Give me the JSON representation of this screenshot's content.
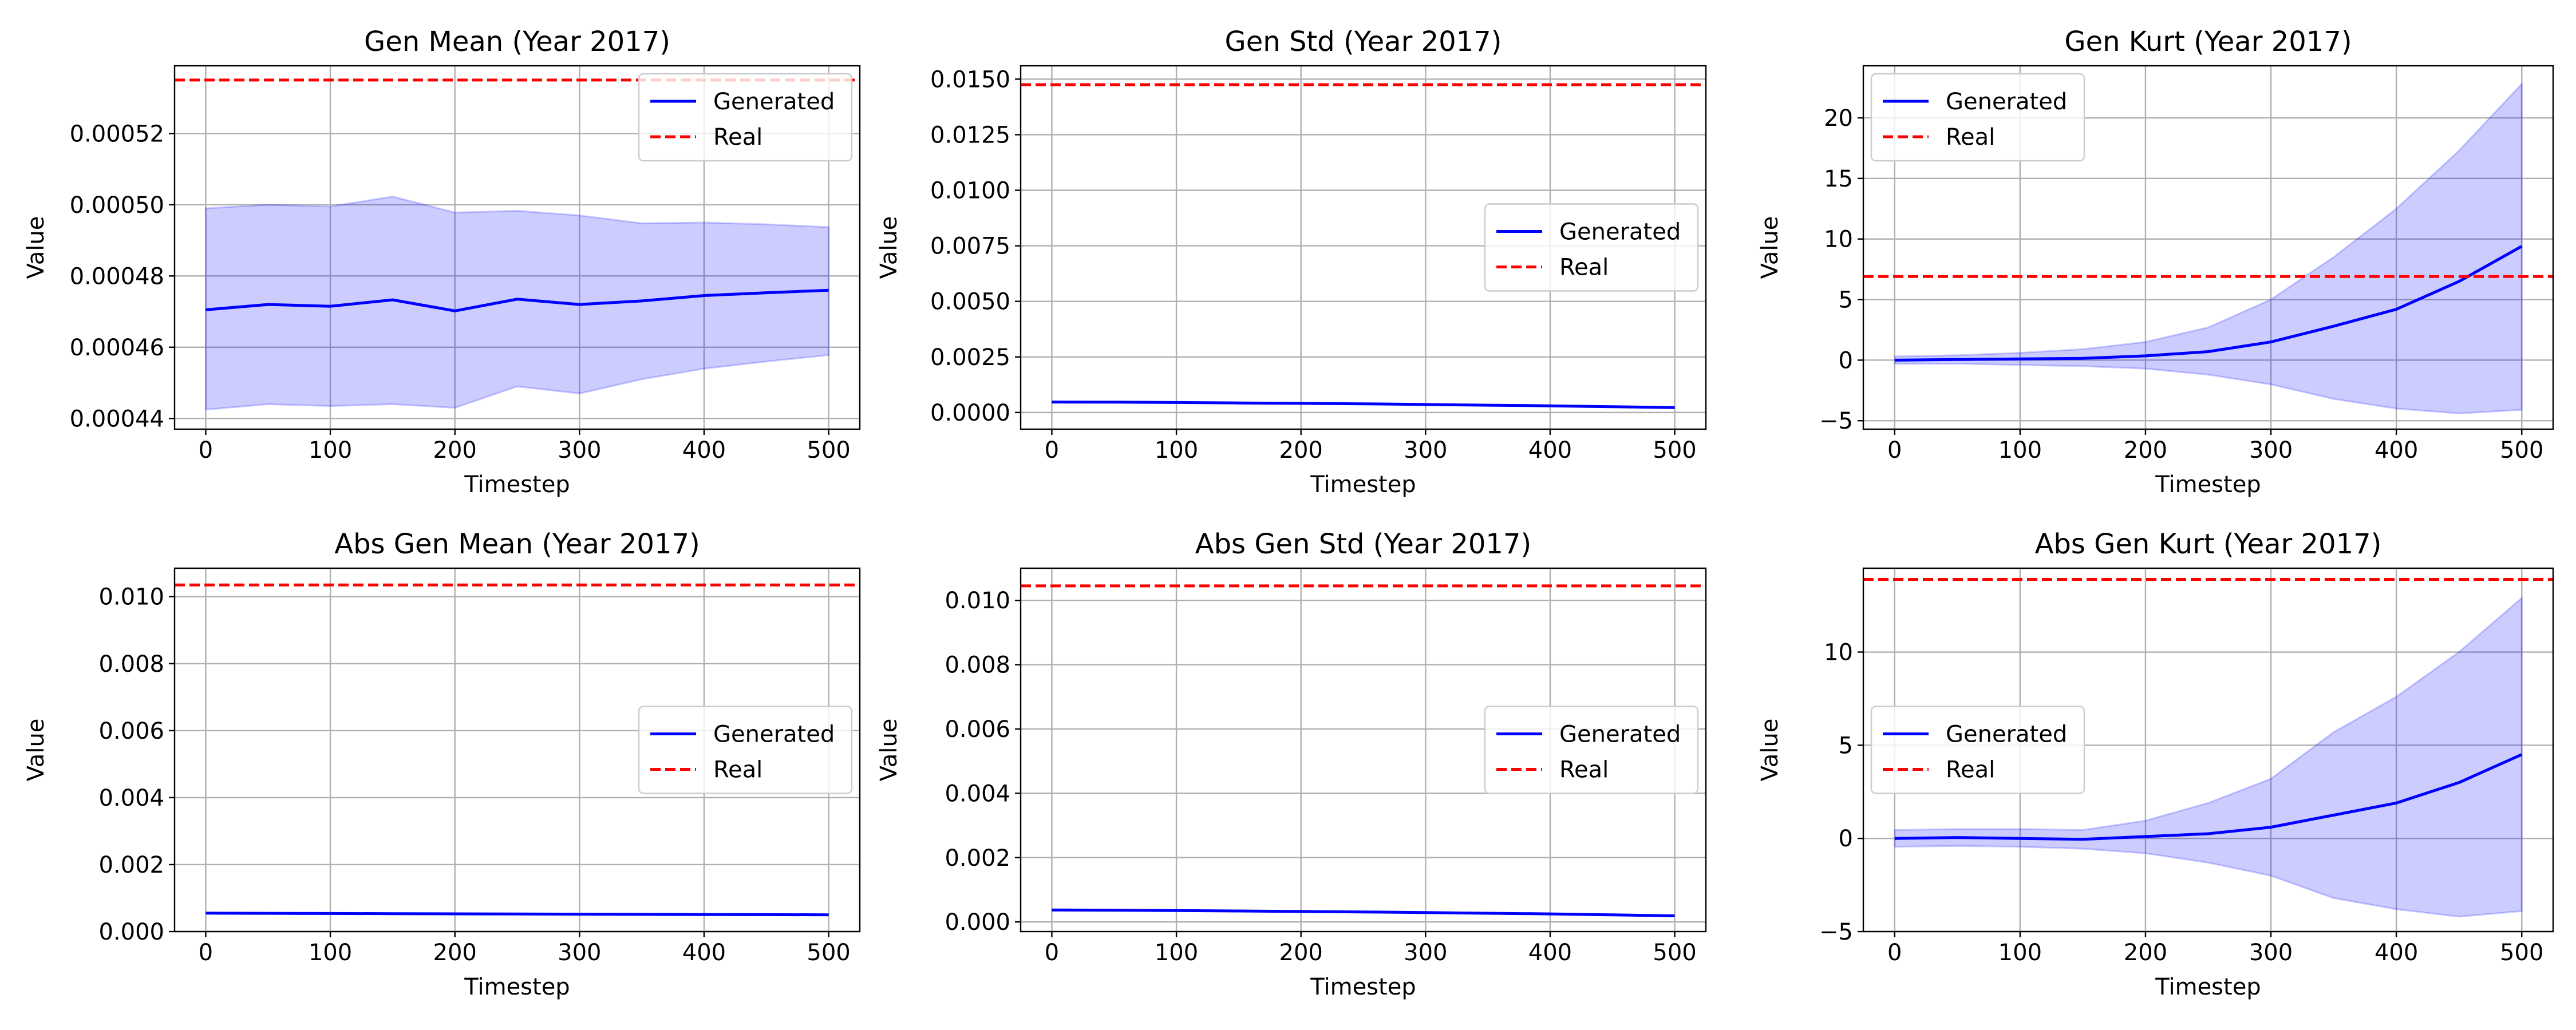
{
  "figure": {
    "colors": {
      "generated": "#0000ff",
      "band": "#0000ff",
      "real": "#ff0000",
      "grid": "#b0b0b0",
      "axes": "#000000"
    }
  },
  "chart_data": [
    {
      "type": "line",
      "title": "Gen Mean (Year 2017)",
      "xlabel": "Timestep",
      "ylabel": "Value",
      "xlim": [
        -25,
        525
      ],
      "ylim": [
        0.000437,
        0.000539
      ],
      "xticks": [
        0,
        100,
        200,
        300,
        400,
        500
      ],
      "xtick_labels": [
        "0",
        "100",
        "200",
        "300",
        "400",
        "500"
      ],
      "yticks": [
        0.00044,
        0.00046,
        0.00048,
        0.0005,
        0.00052
      ],
      "ytick_labels": [
        "0.00044",
        "0.00046",
        "0.00048",
        "0.00050",
        "0.00052"
      ],
      "grid": true,
      "legend": {
        "position": "upper-right",
        "entries": [
          "Generated",
          "Real"
        ]
      },
      "x": [
        0,
        50,
        100,
        150,
        200,
        250,
        300,
        350,
        400,
        450,
        500
      ],
      "series": [
        {
          "name": "Generated",
          "kind": "line",
          "values": [
            0.0004705,
            0.000472,
            0.0004715,
            0.0004733,
            0.0004702,
            0.0004735,
            0.000472,
            0.000473,
            0.0004745,
            0.0004753,
            0.000476
          ]
        },
        {
          "name": "Generated band upper",
          "kind": "band-upper",
          "values": [
            0.000499,
            0.0005,
            0.0004995,
            0.0005023,
            0.0004978,
            0.0004983,
            0.000497,
            0.0004948,
            0.000495,
            0.0004945,
            0.0004937
          ]
        },
        {
          "name": "Generated band lower",
          "kind": "band-lower",
          "values": [
            0.0004425,
            0.000444,
            0.0004435,
            0.000444,
            0.000443,
            0.000449,
            0.000447,
            0.000451,
            0.000454,
            0.000456,
            0.0004578
          ]
        },
        {
          "name": "Real",
          "kind": "hline",
          "value": 0.000535
        }
      ]
    },
    {
      "type": "line",
      "title": "Gen Std (Year 2017)",
      "xlabel": "Timestep",
      "ylabel": "Value",
      "xlim": [
        -25,
        525
      ],
      "ylim": [
        -0.00075,
        0.0156
      ],
      "xticks": [
        0,
        100,
        200,
        300,
        400,
        500
      ],
      "xtick_labels": [
        "0",
        "100",
        "200",
        "300",
        "400",
        "500"
      ],
      "yticks": [
        0,
        0.0025,
        0.005,
        0.0075,
        0.01,
        0.0125,
        0.015
      ],
      "ytick_labels": [
        "0.0000",
        "0.0025",
        "0.0050",
        "0.0075",
        "0.0100",
        "0.0125",
        "0.0150"
      ],
      "grid": true,
      "legend": {
        "position": "center-right",
        "entries": [
          "Generated",
          "Real"
        ]
      },
      "x": [
        0,
        50,
        100,
        150,
        200,
        250,
        300,
        350,
        400,
        450,
        500
      ],
      "series": [
        {
          "name": "Generated",
          "kind": "line",
          "values": [
            0.00047,
            0.000465,
            0.00045,
            0.00043,
            0.00041,
            0.00039,
            0.00036,
            0.00033,
            0.0003,
            0.00026,
            0.00022
          ]
        },
        {
          "name": "Real",
          "kind": "hline",
          "value": 0.01475
        }
      ]
    },
    {
      "type": "line",
      "title": "Gen Kurt (Year 2017)",
      "xlabel": "Timestep",
      "ylabel": "Value",
      "xlim": [
        -25,
        525
      ],
      "ylim": [
        -5.7,
        24.3
      ],
      "xticks": [
        0,
        100,
        200,
        300,
        400,
        500
      ],
      "xtick_labels": [
        "0",
        "100",
        "200",
        "300",
        "400",
        "500"
      ],
      "yticks": [
        -5,
        0,
        5,
        10,
        15,
        20
      ],
      "ytick_labels": [
        "−5",
        "0",
        "5",
        "10",
        "15",
        "20"
      ],
      "grid": true,
      "legend": {
        "position": "upper-left",
        "entries": [
          "Generated",
          "Real"
        ]
      },
      "x": [
        0,
        50,
        100,
        150,
        200,
        250,
        300,
        350,
        400,
        450,
        500
      ],
      "series": [
        {
          "name": "Generated",
          "kind": "line",
          "values": [
            0.0,
            0.05,
            0.1,
            0.15,
            0.35,
            0.7,
            1.5,
            2.8,
            4.2,
            6.5,
            9.4
          ]
        },
        {
          "name": "Generated band upper",
          "kind": "band-upper",
          "values": [
            0.3,
            0.4,
            0.6,
            0.9,
            1.5,
            2.7,
            5.0,
            8.5,
            12.5,
            17.3,
            22.8
          ]
        },
        {
          "name": "Generated band lower",
          "kind": "band-lower",
          "values": [
            -0.3,
            -0.3,
            -0.4,
            -0.5,
            -0.7,
            -1.2,
            -2.0,
            -3.2,
            -4.0,
            -4.4,
            -4.1
          ]
        },
        {
          "name": "Real",
          "kind": "hline",
          "value": 6.9
        }
      ]
    },
    {
      "type": "line",
      "title": "Abs Gen Mean (Year 2017)",
      "xlabel": "Timestep",
      "ylabel": "Value",
      "xlim": [
        -25,
        525
      ],
      "ylim": [
        0.0,
        0.01085
      ],
      "xticks": [
        0,
        100,
        200,
        300,
        400,
        500
      ],
      "xtick_labels": [
        "0",
        "100",
        "200",
        "300",
        "400",
        "500"
      ],
      "yticks": [
        0,
        0.002,
        0.004,
        0.006,
        0.008,
        0.01
      ],
      "ytick_labels": [
        "0.000",
        "0.002",
        "0.004",
        "0.006",
        "0.008",
        "0.010"
      ],
      "grid": true,
      "legend": {
        "position": "center-right",
        "entries": [
          "Generated",
          "Real"
        ]
      },
      "x": [
        0,
        50,
        100,
        150,
        200,
        250,
        300,
        350,
        400,
        450,
        500
      ],
      "series": [
        {
          "name": "Generated",
          "kind": "line",
          "values": [
            0.00055,
            0.000545,
            0.00054,
            0.000535,
            0.00053,
            0.000525,
            0.00052,
            0.000515,
            0.00051,
            0.000505,
            0.0005
          ]
        },
        {
          "name": "Real",
          "kind": "hline",
          "value": 0.01035
        }
      ]
    },
    {
      "type": "line",
      "title": "Abs Gen Std (Year 2017)",
      "xlabel": "Timestep",
      "ylabel": "Value",
      "xlim": [
        -25,
        525
      ],
      "ylim": [
        -0.0003,
        0.011
      ],
      "xticks": [
        0,
        100,
        200,
        300,
        400,
        500
      ],
      "xtick_labels": [
        "0",
        "100",
        "200",
        "300",
        "400",
        "500"
      ],
      "yticks": [
        0,
        0.002,
        0.004,
        0.006,
        0.008,
        0.01
      ],
      "ytick_labels": [
        "0.000",
        "0.002",
        "0.004",
        "0.006",
        "0.008",
        "0.010"
      ],
      "grid": true,
      "legend": {
        "position": "center-right",
        "entries": [
          "Generated",
          "Real"
        ]
      },
      "x": [
        0,
        50,
        100,
        150,
        200,
        250,
        300,
        350,
        400,
        450,
        500
      ],
      "series": [
        {
          "name": "Generated",
          "kind": "line",
          "values": [
            0.00037,
            0.000365,
            0.000355,
            0.00034,
            0.000325,
            0.00031,
            0.00029,
            0.00027,
            0.00025,
            0.00022,
            0.00019
          ]
        },
        {
          "name": "Real",
          "kind": "hline",
          "value": 0.01045
        }
      ]
    },
    {
      "type": "line",
      "title": "Abs Gen Kurt (Year 2017)",
      "xlabel": "Timestep",
      "ylabel": "Value",
      "xlim": [
        -25,
        525
      ],
      "ylim": [
        -5.0,
        14.5
      ],
      "xticks": [
        0,
        100,
        200,
        300,
        400,
        500
      ],
      "xtick_labels": [
        "0",
        "100",
        "200",
        "300",
        "400",
        "500"
      ],
      "yticks": [
        -5,
        0,
        5,
        10
      ],
      "ytick_labels": [
        "−5",
        "0",
        "5",
        "10"
      ],
      "grid": true,
      "legend": {
        "position": "center-left",
        "entries": [
          "Generated",
          "Real"
        ]
      },
      "x": [
        0,
        50,
        100,
        150,
        200,
        250,
        300,
        350,
        400,
        450,
        500
      ],
      "series": [
        {
          "name": "Generated",
          "kind": "line",
          "values": [
            0.0,
            0.05,
            0.0,
            -0.05,
            0.1,
            0.25,
            0.6,
            1.25,
            1.9,
            3.0,
            4.5
          ]
        },
        {
          "name": "Generated band upper",
          "kind": "band-upper",
          "values": [
            0.45,
            0.5,
            0.5,
            0.45,
            0.95,
            1.9,
            3.2,
            5.7,
            7.6,
            10.0,
            12.9
          ]
        },
        {
          "name": "Generated band lower",
          "kind": "band-lower",
          "values": [
            -0.45,
            -0.4,
            -0.45,
            -0.55,
            -0.8,
            -1.3,
            -2.0,
            -3.2,
            -3.8,
            -4.2,
            -3.9
          ]
        },
        {
          "name": "Real",
          "kind": "hline",
          "value": 13.9
        }
      ]
    }
  ]
}
